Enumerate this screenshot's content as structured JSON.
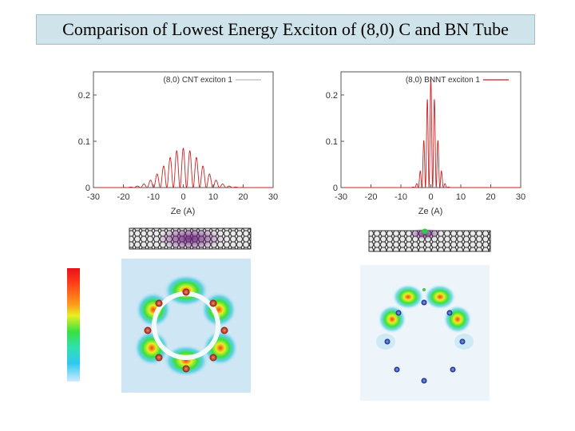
{
  "title": "Comparison of Lowest Energy Exciton of (8,0) C and BN Tube",
  "chart_data": [
    {
      "type": "line",
      "legend": "(8,0) CNT exciton 1",
      "legend_position": "top-right",
      "xlabel": "Ze (A)",
      "ylabel": "",
      "xlim": [
        -30,
        30
      ],
      "ylim": [
        0,
        0.25
      ],
      "xticks": [
        "-30",
        "-20",
        "-10",
        "0",
        "10",
        "20",
        "30"
      ],
      "yticks": [
        "0",
        "0.1",
        "0.2"
      ],
      "envelope": {
        "center": 0,
        "peak": 0.085,
        "width": 8.5
      },
      "oscillation_period": 2.2,
      "color": "#cc2222"
    },
    {
      "type": "line",
      "legend": "(8,0) BNNT exciton 1",
      "legend_position": "top-right",
      "xlabel": "Ze (A)",
      "ylabel": "",
      "xlim": [
        -30,
        30
      ],
      "ylim": [
        0,
        0.25
      ],
      "xticks": [
        "-30",
        "-20",
        "-10",
        "0",
        "10",
        "20",
        "30"
      ],
      "yticks": [
        "0",
        "0.1",
        "0.2"
      ],
      "envelope": {
        "center": 0,
        "peak": 0.235,
        "width": 2.6
      },
      "oscillation_period": 1.2,
      "color": "#cc2222"
    }
  ],
  "colorbar": {
    "top": "#e8101a",
    "bottom": "#cfeaff"
  }
}
